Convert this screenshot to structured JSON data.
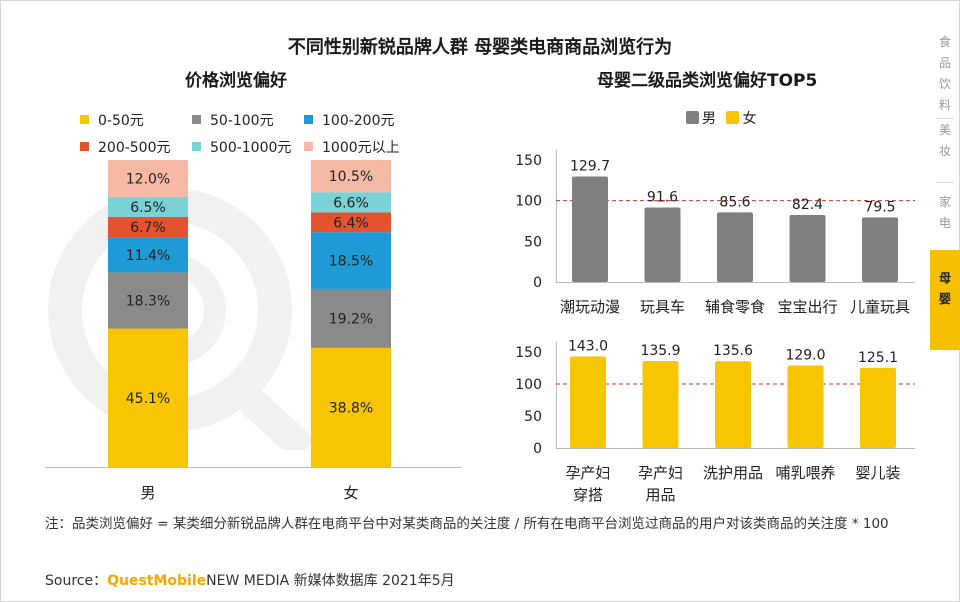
{
  "header": {
    "title": "不同性别新锐品牌人群 母婴类电商商品浏览行为",
    "left_subtitle": "价格浏览偏好",
    "right_subtitle": "母婴二级品类浏览偏好TOP5"
  },
  "side_nav": {
    "items": [
      {
        "label": "食\n品\n饮\n料",
        "active": false
      },
      {
        "label": "美\n妆",
        "active": false
      },
      {
        "label": "家\n电",
        "active": false
      },
      {
        "label": "母\n婴",
        "active": true
      }
    ]
  },
  "colors": {
    "p0_50": "#f7c600",
    "p50_100": "#8a8a8a",
    "p100_200": "#1e9ad6",
    "p200_500": "#e5532e",
    "p500_1000": "#7ad1d6",
    "p1000plus": "#f5b9a6",
    "male": "#7f7f7f",
    "female": "#f7c600",
    "avg_line": "#c0392b",
    "brand": "#f5a800"
  },
  "chart_data": [
    {
      "type": "bar",
      "stacked": true,
      "title": "价格浏览偏好",
      "categories": [
        "男",
        "女"
      ],
      "series": [
        {
          "name": "0-50元",
          "values": [
            45.1,
            38.8
          ],
          "labels": [
            "45.1%",
            "38.8%"
          ],
          "color_key": "p0_50"
        },
        {
          "name": "50-100元",
          "values": [
            18.3,
            19.2
          ],
          "labels": [
            "18.3%",
            "19.2%"
          ],
          "color_key": "p50_100"
        },
        {
          "name": "100-200元",
          "values": [
            11.4,
            18.5
          ],
          "labels": [
            "11.4%",
            "18.5%"
          ],
          "color_key": "p100_200"
        },
        {
          "name": "200-500元",
          "values": [
            6.7,
            6.4
          ],
          "labels": [
            "6.7%",
            "6.4%"
          ],
          "color_key": "p200_500"
        },
        {
          "name": "500-1000元",
          "values": [
            6.5,
            6.6
          ],
          "labels": [
            "6.5%",
            "6.6%"
          ],
          "color_key": "p500_1000"
        },
        {
          "name": "1000元以上",
          "values": [
            12.0,
            10.5
          ],
          "labels": [
            "12.0%",
            "10.5%"
          ],
          "color_key": "p1000plus"
        }
      ],
      "legend_position": "top",
      "ylim": [
        0,
        100
      ],
      "grid": false
    },
    {
      "type": "bar",
      "series_name": "男",
      "categories": [
        "潮玩动漫",
        "玩具车",
        "辅食零食",
        "宝宝出行",
        "儿童玩具"
      ],
      "values": [
        129.7,
        91.6,
        85.6,
        82.4,
        79.5
      ],
      "labels": [
        "129.7",
        "91.6",
        "85.6",
        "82.4",
        "79.5"
      ],
      "yticks": [
        "0",
        "50",
        "100",
        "150"
      ],
      "ylim": [
        0,
        150
      ],
      "reference_line": 100,
      "grid": false
    },
    {
      "type": "bar",
      "series_name": "女",
      "categories": [
        "孕产妇\n穿搭",
        "孕产妇\n用品",
        "洗护用品",
        "哺乳喂养",
        "婴儿装"
      ],
      "values": [
        143.0,
        135.9,
        135.6,
        129.0,
        125.1
      ],
      "labels": [
        "143.0",
        "135.9",
        "135.6",
        "129.0",
        "125.1"
      ],
      "yticks": [
        "0",
        "50",
        "100",
        "150"
      ],
      "ylim": [
        0,
        150
      ],
      "reference_line": 100,
      "grid": false
    }
  ],
  "right_legend": {
    "male": "男",
    "female": "女"
  },
  "footer": {
    "note": "注：品类浏览偏好 = 某类细分新锐品牌人群在电商平台中对某类商品的关注度 / 所有在电商平台浏览过商品的用户对该类商品的关注度 * 100",
    "source_prefix": "Source：",
    "source_brand": "QuestMobile",
    "source_rest": "NEW MEDIA 新媒体数据库 2021年5月"
  }
}
